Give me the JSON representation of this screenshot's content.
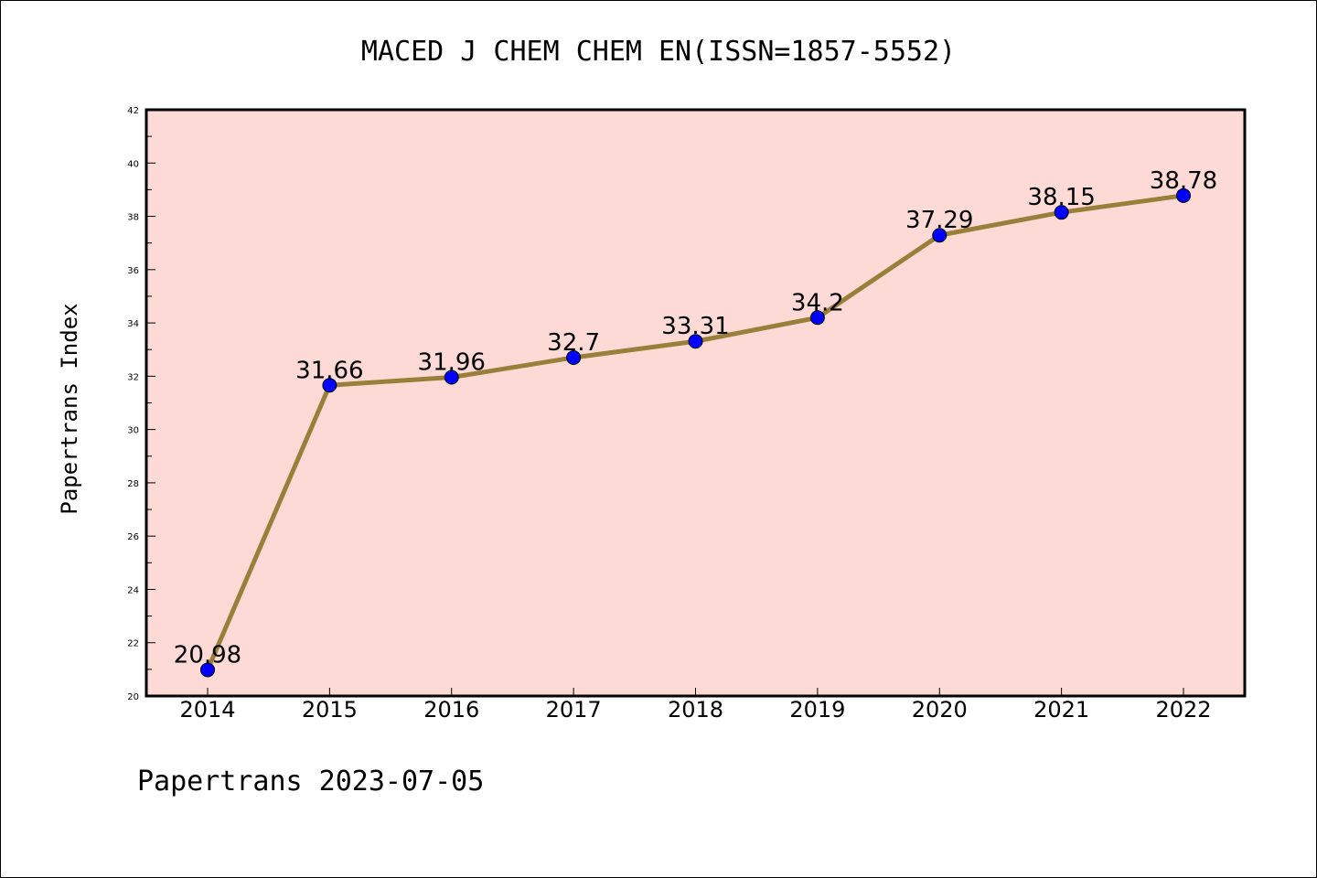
{
  "colors": {
    "plot_background": "#fddad6",
    "line": "#9a7f3a",
    "marker": "#0000ff",
    "axis": "#000000"
  },
  "chart_data": {
    "type": "line",
    "title": "MACED J CHEM CHEM EN(ISSN=1857-5552)",
    "xlabel": "",
    "ylabel": "Papertrans Index",
    "categories": [
      "2014",
      "2015",
      "2016",
      "2017",
      "2018",
      "2019",
      "2020",
      "2021",
      "2022"
    ],
    "series": [
      {
        "values": [
          20.98,
          31.66,
          31.96,
          32.7,
          33.31,
          34.2,
          37.29,
          38.15,
          38.78
        ],
        "data_labels": [
          "20.98",
          "31.66",
          "31.96",
          "32.7",
          "33.31",
          "34.2",
          "37.29",
          "38.15",
          "38.78"
        ]
      }
    ],
    "ylim": [
      20,
      42
    ],
    "yticks": [
      "20",
      "22",
      "24",
      "26",
      "28",
      "30",
      "32",
      "34",
      "36",
      "38",
      "40",
      "42"
    ],
    "grid": false,
    "legend": "none"
  },
  "footer": "Papertrans 2023-07-05"
}
